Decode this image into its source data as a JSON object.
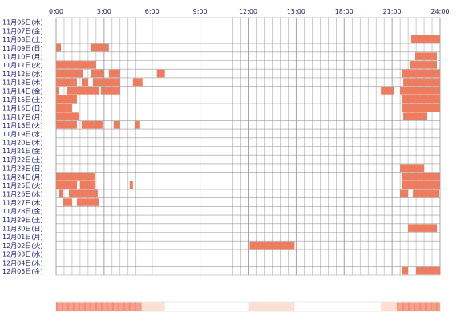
{
  "chart_data": {
    "type": "heatmap",
    "title": "",
    "xlabel": "",
    "ylabel": "",
    "x_ticks": [
      "0:00",
      "3:00",
      "6:00",
      "9:00",
      "12:00",
      "15:00",
      "18:00",
      "21:00",
      "24:00"
    ],
    "x_range_hours": [
      0,
      24
    ],
    "grid": true,
    "colors": {
      "activity": "#f47a5c",
      "grid": "#9a9a9a",
      "label": "#1a1a6e"
    },
    "days": [
      {
        "label": "11月06日(木)",
        "intervals": []
      },
      {
        "label": "11月07日(金)",
        "intervals": []
      },
      {
        "label": "11月08日(土)",
        "intervals": [
          [
            22.2,
            24.0
          ]
        ]
      },
      {
        "label": "11月09日(日)",
        "intervals": [
          [
            0.0,
            0.3
          ],
          [
            2.2,
            3.3
          ]
        ]
      },
      {
        "label": "11月10日(月)",
        "intervals": [
          [
            22.4,
            23.8
          ]
        ]
      },
      {
        "label": "11月11日(火)",
        "intervals": [
          [
            0.0,
            2.5
          ],
          [
            22.1,
            23.8
          ]
        ]
      },
      {
        "label": "11月12日(水)",
        "intervals": [
          [
            0.0,
            1.7
          ],
          [
            2.2,
            3.0
          ],
          [
            3.3,
            4.0
          ],
          [
            6.3,
            6.8
          ],
          [
            21.6,
            24.0
          ]
        ]
      },
      {
        "label": "11月13日(木)",
        "intervals": [
          [
            0.0,
            1.3
          ],
          [
            1.6,
            2.0
          ],
          [
            2.3,
            4.0
          ],
          [
            4.8,
            5.4
          ],
          [
            21.7,
            24.0
          ]
        ]
      },
      {
        "label": "11月14日(金)",
        "intervals": [
          [
            0.0,
            0.2
          ],
          [
            0.7,
            2.7
          ],
          [
            2.8,
            4.0
          ],
          [
            20.3,
            21.1
          ],
          [
            21.5,
            24.0
          ]
        ]
      },
      {
        "label": "11月15日(土)",
        "intervals": [
          [
            0.0,
            1.3
          ],
          [
            21.6,
            24.0
          ]
        ]
      },
      {
        "label": "11月16日(日)",
        "intervals": [
          [
            0.0,
            1.0
          ],
          [
            21.6,
            24.0
          ]
        ]
      },
      {
        "label": "11月17日(月)",
        "intervals": [
          [
            0.0,
            1.4
          ],
          [
            21.7,
            23.2
          ]
        ]
      },
      {
        "label": "11月18日(火)",
        "intervals": [
          [
            0.0,
            1.3
          ],
          [
            1.6,
            2.9
          ],
          [
            3.6,
            4.0
          ],
          [
            4.9,
            5.2
          ]
        ]
      },
      {
        "label": "11月19日(水)",
        "intervals": []
      },
      {
        "label": "11月20日(木)",
        "intervals": []
      },
      {
        "label": "11月21日(金)",
        "intervals": []
      },
      {
        "label": "11月22日(土)",
        "intervals": []
      },
      {
        "label": "11月23日(日)",
        "intervals": [
          [
            21.5,
            23.0
          ]
        ]
      },
      {
        "label": "11月24日(月)",
        "intervals": [
          [
            0.0,
            2.4
          ],
          [
            21.6,
            24.0
          ]
        ]
      },
      {
        "label": "11月25日(火)",
        "intervals": [
          [
            0.0,
            1.3
          ],
          [
            1.5,
            2.4
          ],
          [
            4.6,
            4.8
          ],
          [
            21.6,
            24.0
          ]
        ]
      },
      {
        "label": "11月26日(水)",
        "intervals": [
          [
            0.2,
            0.4
          ],
          [
            0.8,
            2.6
          ],
          [
            21.5,
            22.0
          ],
          [
            22.3,
            23.9
          ]
        ]
      },
      {
        "label": "11月27日(木)",
        "intervals": [
          [
            0.4,
            1.0
          ],
          [
            1.3,
            2.7
          ]
        ]
      },
      {
        "label": "11月28日(金)",
        "intervals": []
      },
      {
        "label": "11月29日(土)",
        "intervals": []
      },
      {
        "label": "11月30日(日)",
        "intervals": [
          [
            22.0,
            23.8
          ]
        ]
      },
      {
        "label": "12月01日(月)",
        "intervals": []
      },
      {
        "label": "12月02日(火)",
        "intervals": [
          [
            12.1,
            14.9
          ]
        ]
      },
      {
        "label": "12月03日(水)",
        "intervals": []
      },
      {
        "label": "12月04日(木)",
        "intervals": []
      },
      {
        "label": "12月05日(金)",
        "intervals": [
          [
            21.6,
            22.0
          ],
          [
            22.5,
            24.0
          ]
        ]
      }
    ],
    "summary_bar": {
      "description": "intensity strip below grid",
      "segments": [
        [
          0.0,
          5.3,
          1.0
        ],
        [
          5.3,
          6.8,
          0.4
        ],
        [
          12.0,
          14.9,
          0.35
        ],
        [
          20.3,
          21.3,
          0.35
        ],
        [
          21.3,
          24.0,
          1.0
        ]
      ]
    }
  }
}
